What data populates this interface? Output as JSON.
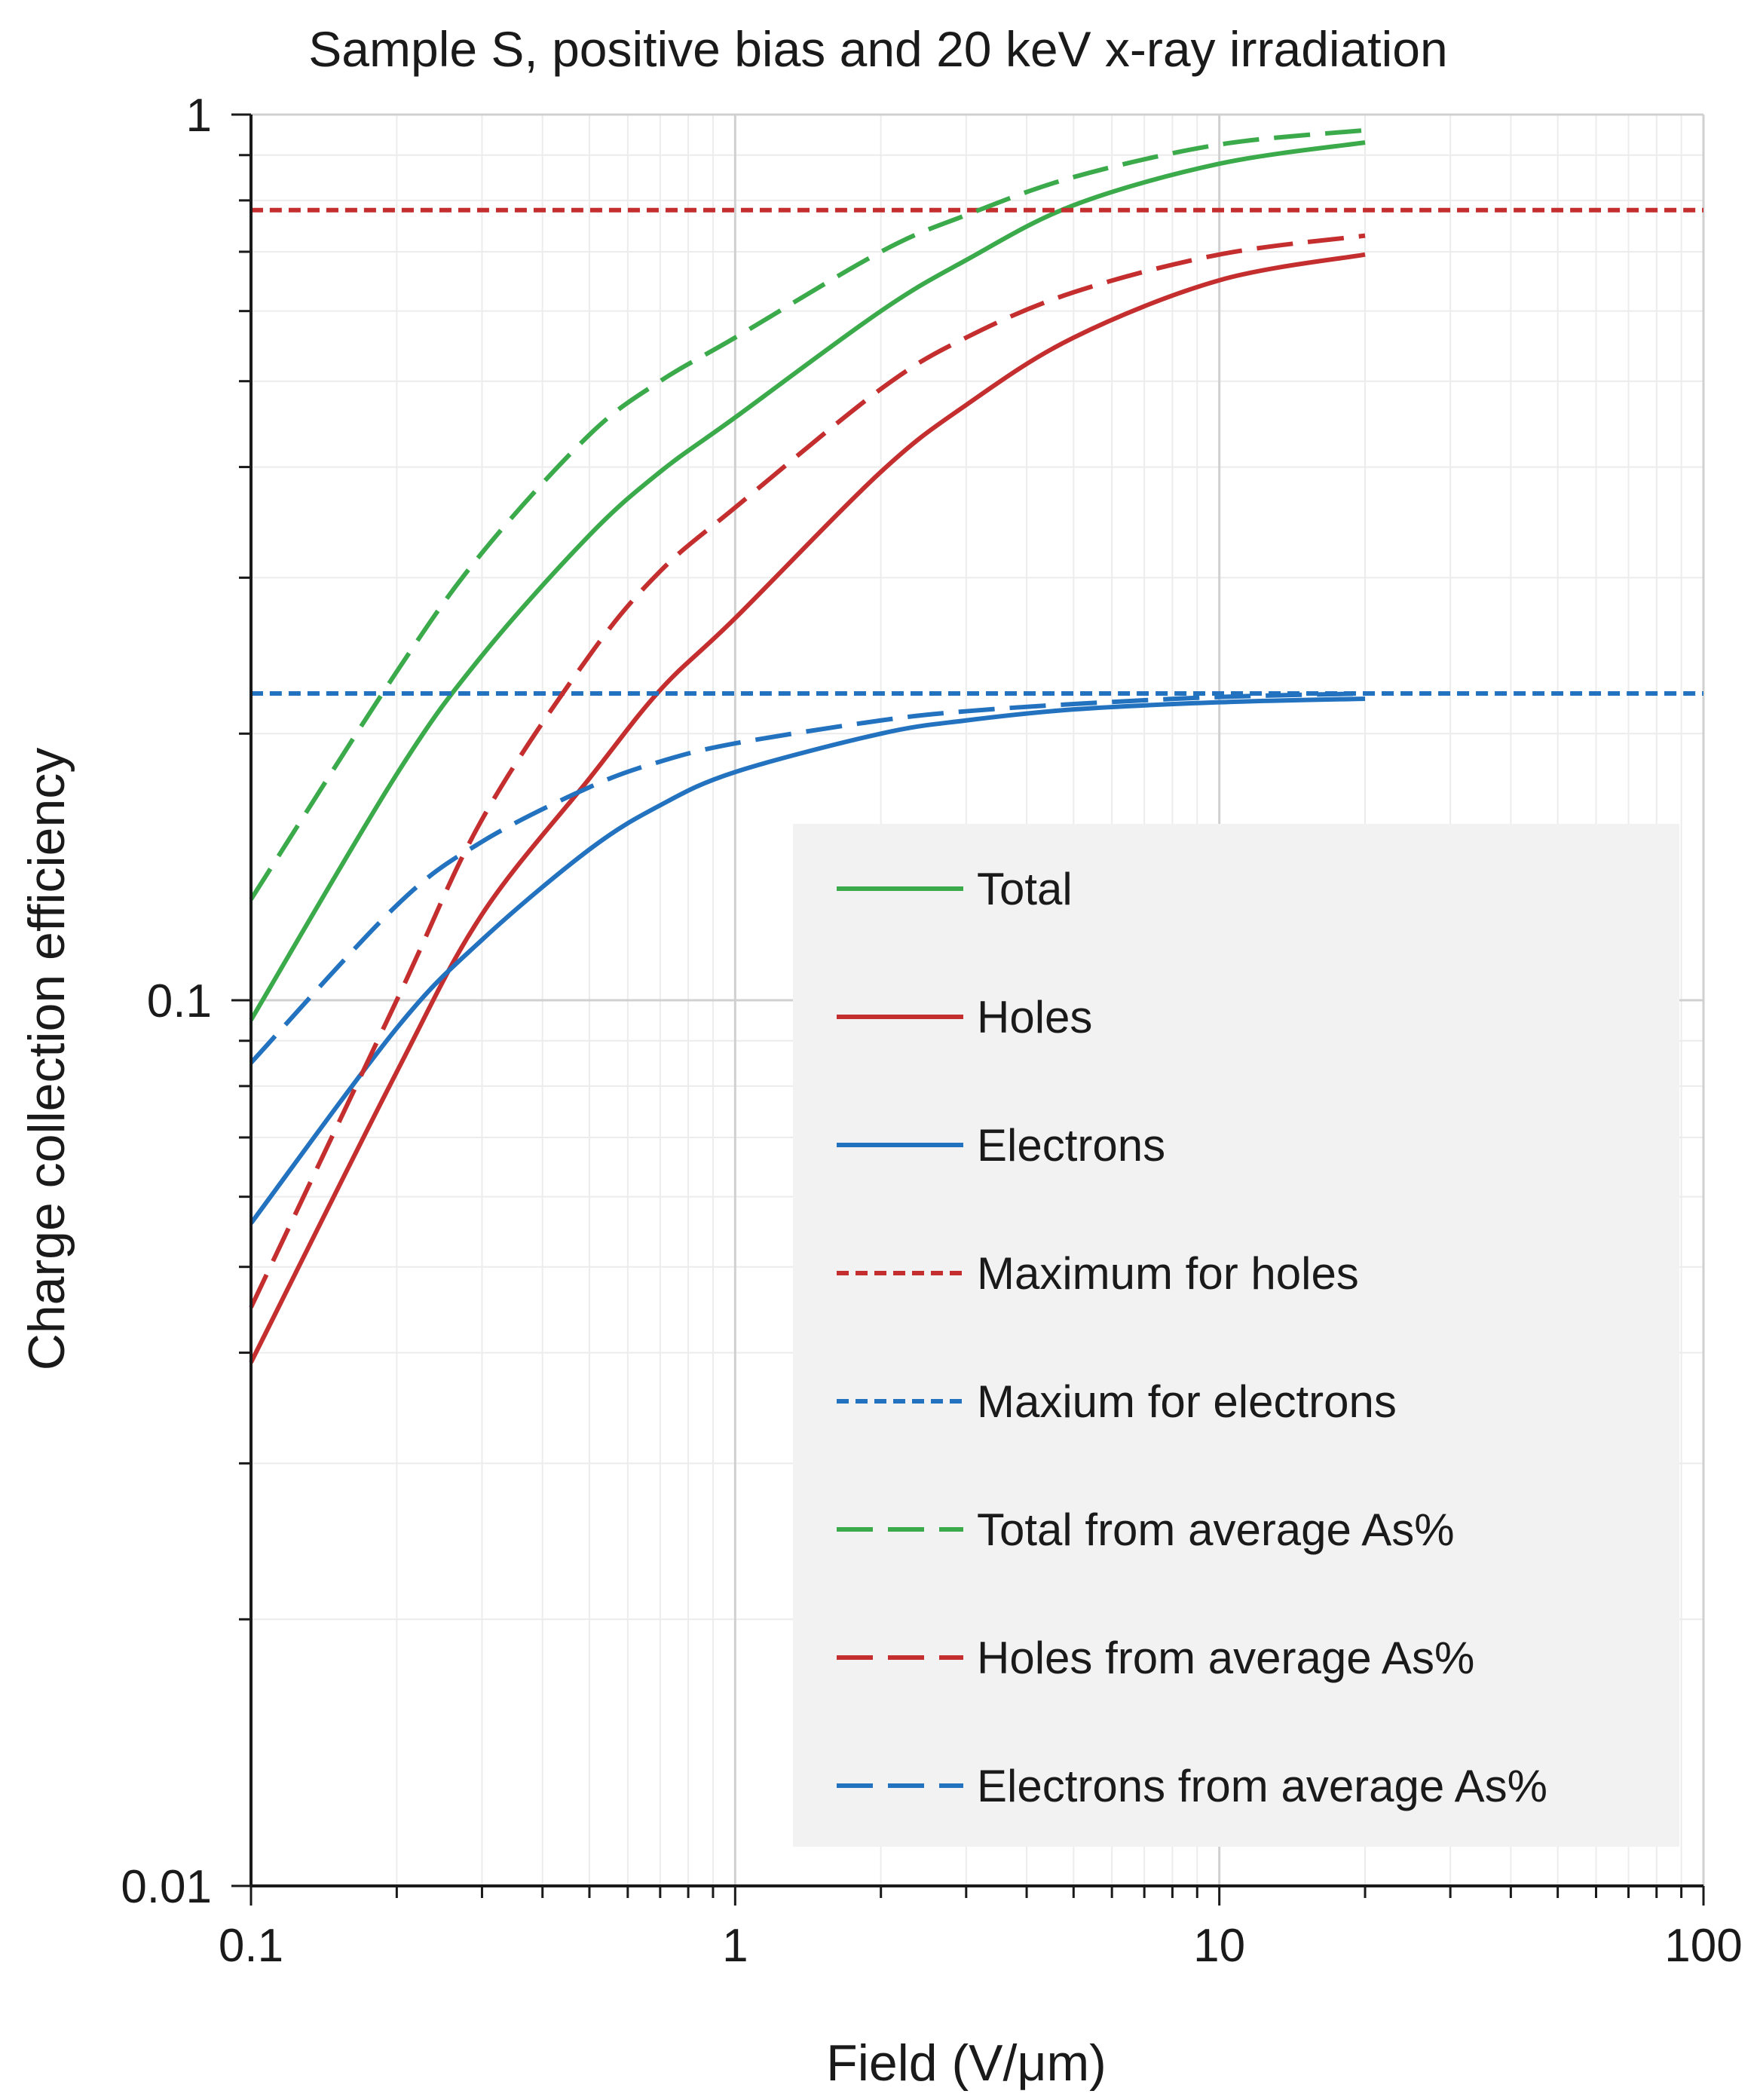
{
  "chart_data": {
    "type": "line",
    "title": "Sample S, positive bias and 20 keV x-ray irradiation",
    "xlabel": "Field (V/μm)",
    "ylabel": "Charge collection efficiency",
    "xscale": "log",
    "yscale": "log",
    "xlim": [
      0.1,
      100
    ],
    "ylim": [
      0.01,
      1
    ],
    "x_ticks": [
      0.1,
      1,
      10,
      100
    ],
    "x_tick_labels": [
      "0.1",
      "1",
      "10",
      "100"
    ],
    "y_ticks": [
      0.01,
      0.1,
      1
    ],
    "y_tick_labels": [
      "0.01",
      "0.1",
      "1"
    ],
    "grid": true,
    "legend_position": "bottom-right",
    "x": [
      0.1,
      0.2,
      0.3,
      0.5,
      0.7,
      1,
      2,
      3,
      5,
      10,
      20
    ],
    "series": [
      {
        "name": "Total",
        "color": "#3aaa4a",
        "style": "solid",
        "values": [
          0.095,
          0.18,
          0.245,
          0.335,
          0.395,
          0.455,
          0.6,
          0.685,
          0.79,
          0.88,
          0.93
        ]
      },
      {
        "name": "Holes",
        "color": "#c42e2e",
        "style": "solid",
        "values": [
          0.039,
          0.083,
          0.125,
          0.178,
          0.224,
          0.27,
          0.395,
          0.47,
          0.56,
          0.65,
          0.695
        ]
      },
      {
        "name": "Electrons",
        "color": "#2272bf",
        "style": "solid",
        "values": [
          0.056,
          0.093,
          0.117,
          0.148,
          0.166,
          0.181,
          0.2,
          0.207,
          0.213,
          0.217,
          0.219
        ]
      },
      {
        "name": "Maximum for holes",
        "color": "#c42e2e",
        "style": "dotted",
        "values": [
          0.78,
          0.78,
          0.78,
          0.78,
          0.78,
          0.78,
          0.78,
          0.78,
          0.78,
          0.78,
          0.78
        ],
        "x_extent": [
          0.1,
          100
        ]
      },
      {
        "name": "Maxium for electrons",
        "color": "#2272bf",
        "style": "dotted",
        "values": [
          0.222,
          0.222,
          0.222,
          0.222,
          0.222,
          0.222,
          0.222,
          0.222,
          0.222,
          0.222,
          0.222
        ],
        "x_extent": [
          0.1,
          100
        ]
      },
      {
        "name": "Total from average As%",
        "color": "#3aaa4a",
        "style": "dashed",
        "values": [
          0.13,
          0.235,
          0.32,
          0.435,
          0.5,
          0.56,
          0.7,
          0.77,
          0.85,
          0.925,
          0.96
        ]
      },
      {
        "name": "Holes from average As%",
        "color": "#c42e2e",
        "style": "dashed",
        "values": [
          0.045,
          0.1,
          0.16,
          0.245,
          0.305,
          0.36,
          0.49,
          0.56,
          0.63,
          0.695,
          0.73
        ]
      },
      {
        "name": "Electrons from average As%",
        "color": "#2272bf",
        "style": "dashed",
        "values": [
          0.085,
          0.128,
          0.151,
          0.174,
          0.186,
          0.195,
          0.207,
          0.212,
          0.216,
          0.22,
          0.222
        ]
      }
    ]
  }
}
